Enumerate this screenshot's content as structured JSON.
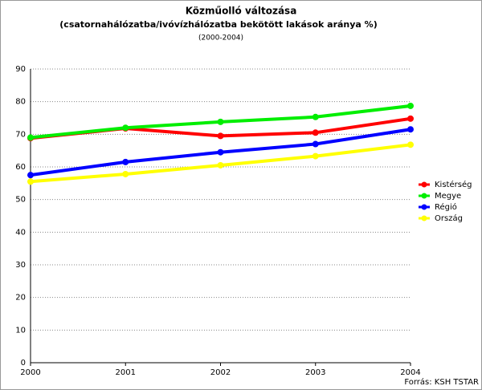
{
  "chart_data": {
    "type": "line",
    "title": "Közműolló változása",
    "subtitle": "(csatornahálózatba/ivóvízhálózatba bekötött lakások aránya %)",
    "period": "(2000-2004)",
    "source": "Forrás: KSH TSTAR",
    "x": [
      2000,
      2001,
      2002,
      2003,
      2004
    ],
    "xlim": [
      2000,
      2004
    ],
    "xticks": [
      2000,
      2001,
      2002,
      2003,
      2004
    ],
    "ylim": [
      0,
      90
    ],
    "yticks": [
      0,
      10,
      20,
      30,
      40,
      50,
      60,
      70,
      80,
      90
    ],
    "grid": true,
    "legend": "right",
    "series": [
      {
        "name": "Kistérség",
        "color": "#ff0000",
        "values": [
          68.8,
          71.8,
          69.5,
          70.5,
          74.8
        ]
      },
      {
        "name": "Megye",
        "color": "#00ee00",
        "values": [
          69.0,
          72.0,
          73.8,
          75.3,
          78.7
        ]
      },
      {
        "name": "Régió",
        "color": "#0000ff",
        "values": [
          57.5,
          61.5,
          64.5,
          67.0,
          71.5
        ]
      },
      {
        "name": "Ország",
        "color": "#ffff00",
        "values": [
          55.5,
          57.8,
          60.5,
          63.3,
          66.8
        ]
      }
    ]
  }
}
